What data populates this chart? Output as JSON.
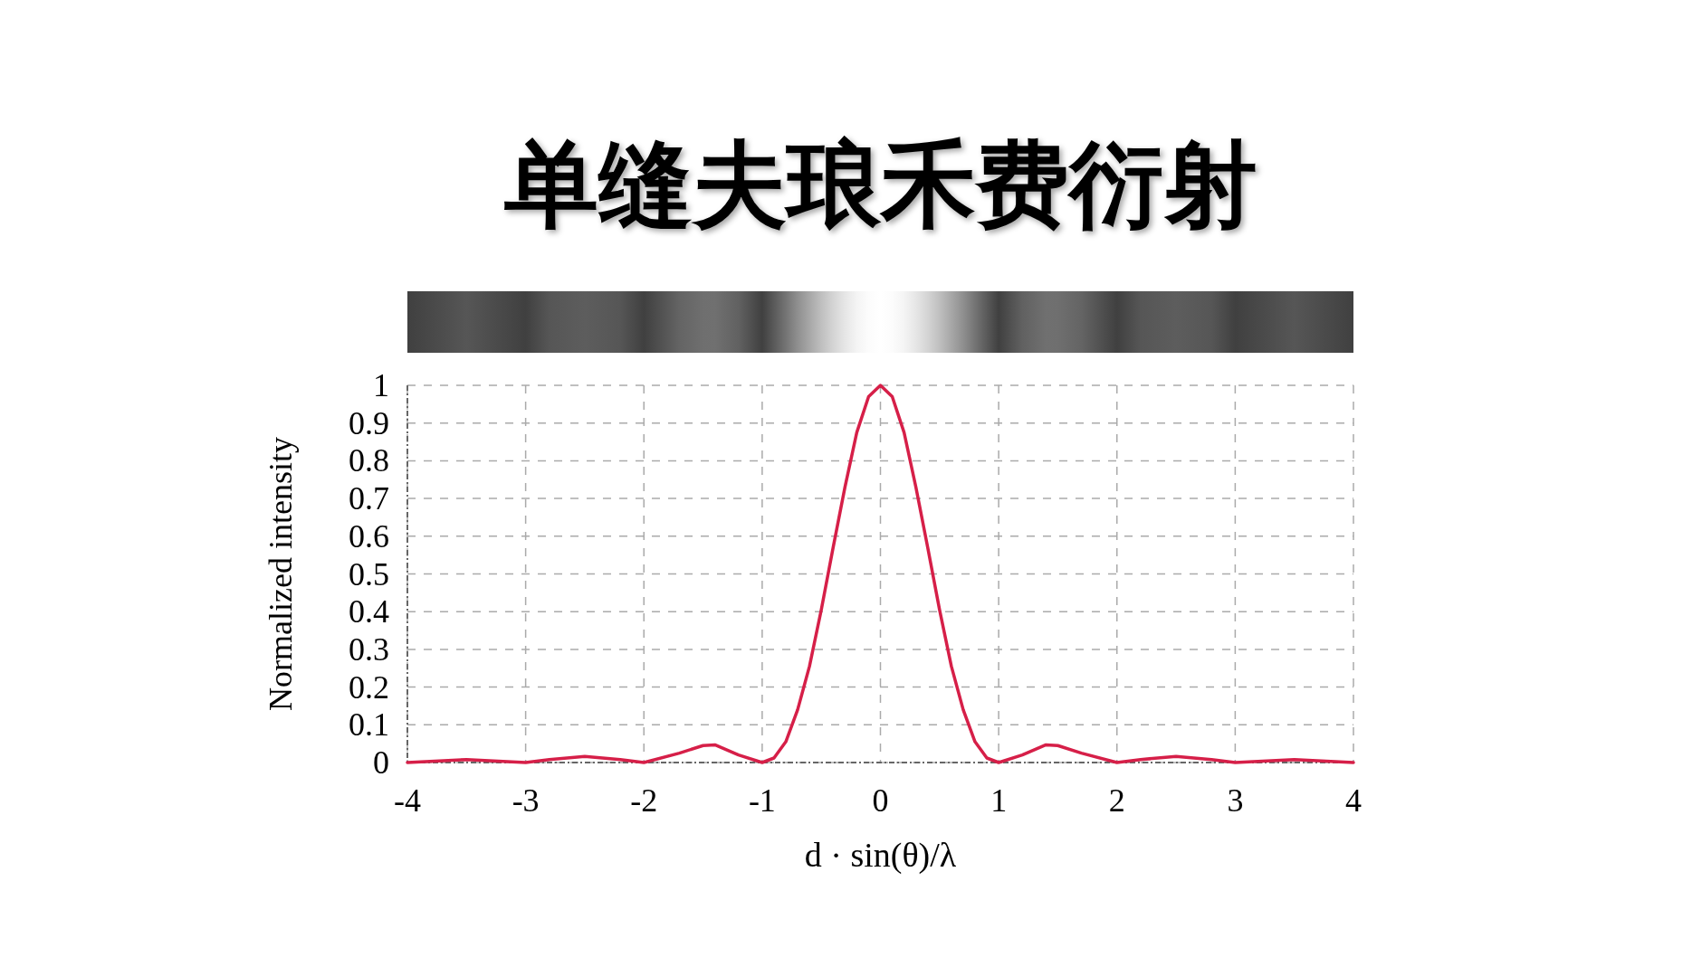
{
  "chart_data": {
    "type": "line",
    "title": "单缝夫琅禾费衍射",
    "xlabel": "d · sin(θ)/λ",
    "ylabel": "Normalized intensity",
    "x": [
      -4,
      -3.5,
      -3,
      -2.8,
      -2.5,
      -2.2,
      -2,
      -1.7,
      -1.5,
      -1.4,
      -1.2,
      -1,
      -0.9,
      -0.8,
      -0.7,
      -0.6,
      -0.5,
      -0.4,
      -0.3,
      -0.2,
      -0.1,
      0,
      0.1,
      0.2,
      0.3,
      0.4,
      0.5,
      0.6,
      0.7,
      0.8,
      0.9,
      1,
      1.2,
      1.4,
      1.5,
      1.7,
      2,
      2.2,
      2.5,
      2.8,
      3,
      3.5,
      4
    ],
    "series": [
      {
        "color": "#d61f48",
        "line_style": "solid",
        "values": [
          0,
          0.008,
          0,
          0.008,
          0.016,
          0.008,
          0,
          0.025,
          0.045,
          0.047,
          0.02,
          0,
          0.012,
          0.055,
          0.14,
          0.255,
          0.405,
          0.57,
          0.73,
          0.875,
          0.97,
          1,
          0.97,
          0.875,
          0.73,
          0.57,
          0.405,
          0.255,
          0.14,
          0.055,
          0.012,
          0,
          0.02,
          0.047,
          0.045,
          0.025,
          0,
          0.008,
          0.016,
          0.008,
          0,
          0.008,
          0
        ]
      }
    ],
    "xlim": [
      -4,
      4
    ],
    "ylim": [
      0,
      1
    ],
    "xticks": [
      -4,
      -3,
      -2,
      -1,
      0,
      1,
      2,
      3,
      4
    ],
    "yticks": [
      0,
      0.1,
      0.2,
      0.3,
      0.4,
      0.5,
      0.6,
      0.7,
      0.8,
      0.9,
      1
    ],
    "grid": true
  }
}
